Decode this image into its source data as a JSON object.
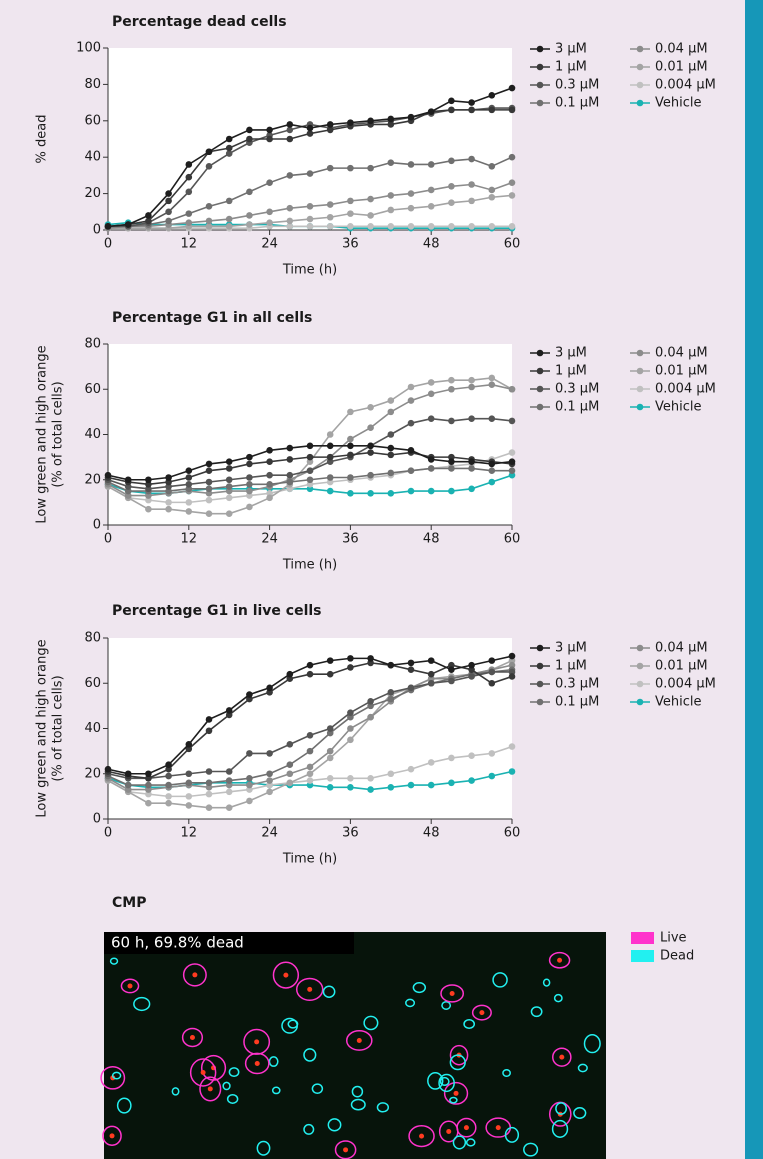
{
  "chart_data": [
    {
      "type": "line",
      "title": "Percentage dead cells",
      "xlabel": "Time (h)",
      "ylabel": [
        "% dead"
      ],
      "x": [
        0,
        3,
        6,
        9,
        12,
        15,
        18,
        21,
        24,
        27,
        30,
        33,
        36,
        39,
        42,
        45,
        48,
        51,
        54,
        57,
        60
      ],
      "xlim": [
        0,
        60
      ],
      "xticks": [
        0,
        12,
        24,
        36,
        48,
        60
      ],
      "ylim": [
        0,
        100
      ],
      "yticks": [
        0,
        20,
        40,
        60,
        80,
        100
      ],
      "series": [
        {
          "name": "3 µM",
          "color": "#1e1e1e",
          "values": [
            2,
            3,
            8,
            20,
            36,
            43,
            50,
            55,
            55,
            58,
            56,
            58,
            59,
            60,
            61,
            62,
            65,
            71,
            70,
            74,
            78
          ]
        },
        {
          "name": "1 µM",
          "color": "#383838",
          "values": [
            2,
            3,
            5,
            16,
            29,
            43,
            45,
            50,
            50,
            50,
            53,
            55,
            57,
            58,
            58,
            60,
            65,
            66,
            66,
            66,
            66
          ]
        },
        {
          "name": "0.3 µM",
          "color": "#555555",
          "values": [
            2,
            2,
            4,
            10,
            21,
            35,
            42,
            48,
            52,
            55,
            58,
            56,
            58,
            59,
            60,
            62,
            64,
            66,
            66,
            67,
            67
          ]
        },
        {
          "name": "0.1 µM",
          "color": "#707070",
          "values": [
            2,
            2,
            3,
            5,
            9,
            13,
            16,
            21,
            26,
            30,
            31,
            34,
            34,
            34,
            37,
            36,
            36,
            38,
            39,
            35,
            40
          ]
        },
        {
          "name": "0.04 µM",
          "color": "#8c8c8c",
          "values": [
            1,
            2,
            2,
            3,
            4,
            5,
            6,
            8,
            10,
            12,
            13,
            14,
            16,
            17,
            19,
            20,
            22,
            24,
            25,
            22,
            26
          ]
        },
        {
          "name": "0.01 µM",
          "color": "#a4a4a4",
          "values": [
            1,
            1,
            1,
            1,
            2,
            2,
            2,
            3,
            4,
            5,
            6,
            7,
            9,
            8,
            11,
            12,
            13,
            15,
            16,
            18,
            19
          ]
        },
        {
          "name": "0.004 µM",
          "color": "#c0c0c0",
          "values": [
            1,
            1,
            1,
            1,
            1,
            1,
            1,
            1,
            2,
            2,
            2,
            2,
            2,
            2,
            2,
            2,
            2,
            2,
            2,
            2,
            2
          ]
        },
        {
          "name": "Vehicle",
          "color": "#1ab2b2",
          "values": [
            3,
            4,
            3,
            3,
            3,
            3,
            3,
            3,
            3,
            2,
            2,
            2,
            1,
            1,
            1,
            1,
            1,
            1,
            1,
            1,
            1
          ]
        }
      ]
    },
    {
      "type": "line",
      "title": "Percentage G1 in all cells",
      "xlabel": "Time (h)",
      "ylabel": [
        "Low green and high orange",
        "(% of total cells)"
      ],
      "x": [
        0,
        3,
        6,
        9,
        12,
        15,
        18,
        21,
        24,
        27,
        30,
        33,
        36,
        39,
        42,
        45,
        48,
        51,
        54,
        57,
        60
      ],
      "xlim": [
        0,
        60
      ],
      "xticks": [
        0,
        12,
        24,
        36,
        48,
        60
      ],
      "ylim": [
        0,
        80
      ],
      "yticks": [
        0,
        20,
        40,
        60,
        80
      ],
      "series": [
        {
          "name": "3 µM",
          "color": "#1e1e1e",
          "values": [
            22,
            20,
            20,
            21,
            24,
            27,
            28,
            30,
            33,
            34,
            35,
            35,
            35,
            35,
            34,
            33,
            29,
            28,
            28,
            27,
            28
          ]
        },
        {
          "name": "1 µM",
          "color": "#383838",
          "values": [
            21,
            19,
            18,
            19,
            21,
            24,
            25,
            27,
            28,
            29,
            30,
            30,
            31,
            32,
            31,
            32,
            30,
            30,
            29,
            28,
            27
          ]
        },
        {
          "name": "0.3 µM",
          "color": "#555555",
          "values": [
            20,
            17,
            16,
            17,
            18,
            19,
            20,
            21,
            22,
            22,
            24,
            28,
            30,
            35,
            40,
            45,
            47,
            46,
            47,
            47,
            46
          ]
        },
        {
          "name": "0.1 µM",
          "color": "#707070",
          "values": [
            19,
            15,
            15,
            15,
            16,
            16,
            17,
            18,
            18,
            19,
            20,
            21,
            21,
            22,
            23,
            24,
            25,
            25,
            25,
            24,
            24
          ]
        },
        {
          "name": "0.04 µM",
          "color": "#8c8c8c",
          "values": [
            18,
            13,
            13,
            14,
            15,
            14,
            15,
            15,
            17,
            20,
            24,
            30,
            38,
            43,
            50,
            55,
            58,
            60,
            61,
            62,
            60
          ]
        },
        {
          "name": "0.01 µM",
          "color": "#a4a4a4",
          "values": [
            17,
            12,
            7,
            7,
            6,
            5,
            5,
            8,
            12,
            18,
            28,
            40,
            50,
            52,
            55,
            61,
            63,
            64,
            64,
            65,
            60
          ]
        },
        {
          "name": "0.004 µM",
          "color": "#c0c0c0",
          "values": [
            17,
            12,
            11,
            10,
            10,
            11,
            12,
            13,
            14,
            16,
            18,
            19,
            20,
            21,
            22,
            24,
            25,
            26,
            27,
            29,
            32
          ]
        },
        {
          "name": "Vehicle",
          "color": "#1ab2b2",
          "values": [
            18,
            15,
            14,
            14,
            15,
            16,
            16,
            16,
            16,
            16,
            16,
            15,
            14,
            14,
            14,
            15,
            15,
            15,
            16,
            19,
            22
          ]
        }
      ]
    },
    {
      "type": "line",
      "title": "Percentage G1 in live cells",
      "xlabel": "Time (h)",
      "ylabel": [
        "Low green and high orange",
        "(% of total cells)"
      ],
      "x": [
        0,
        3,
        6,
        9,
        12,
        15,
        18,
        21,
        24,
        27,
        30,
        33,
        36,
        39,
        42,
        45,
        48,
        51,
        54,
        57,
        60
      ],
      "xlim": [
        0,
        60
      ],
      "xticks": [
        0,
        12,
        24,
        36,
        48,
        60
      ],
      "ylim": [
        0,
        80
      ],
      "yticks": [
        0,
        20,
        40,
        60,
        80
      ],
      "series": [
        {
          "name": "3 µM",
          "color": "#1e1e1e",
          "values": [
            22,
            20,
            20,
            24,
            33,
            44,
            48,
            55,
            58,
            64,
            68,
            70,
            71,
            71,
            68,
            69,
            70,
            66,
            68,
            70,
            72
          ]
        },
        {
          "name": "1 µM",
          "color": "#383838",
          "values": [
            21,
            19,
            18,
            22,
            31,
            39,
            46,
            53,
            56,
            62,
            64,
            64,
            67,
            69,
            68,
            66,
            64,
            68,
            66,
            60,
            63
          ]
        },
        {
          "name": "0.3 µM",
          "color": "#555555",
          "values": [
            20,
            18,
            18,
            19,
            20,
            21,
            21,
            29,
            29,
            33,
            37,
            40,
            47,
            52,
            56,
            58,
            60,
            61,
            63,
            65,
            65
          ]
        },
        {
          "name": "0.1 µM",
          "color": "#707070",
          "values": [
            19,
            15,
            15,
            15,
            16,
            16,
            17,
            18,
            20,
            24,
            30,
            38,
            45,
            50,
            53,
            57,
            60,
            62,
            64,
            65,
            66
          ]
        },
        {
          "name": "0.04 µM",
          "color": "#8c8c8c",
          "values": [
            18,
            13,
            13,
            14,
            15,
            14,
            15,
            15,
            17,
            20,
            23,
            30,
            40,
            45,
            52,
            58,
            62,
            62,
            64,
            66,
            68
          ]
        },
        {
          "name": "0.01 µM",
          "color": "#a4a4a4",
          "values": [
            17,
            12,
            7,
            7,
            6,
            5,
            5,
            8,
            12,
            16,
            20,
            27,
            35,
            45,
            55,
            58,
            62,
            63,
            64,
            66,
            70
          ]
        },
        {
          "name": "0.004 µM",
          "color": "#c0c0c0",
          "values": [
            17,
            12,
            11,
            10,
            10,
            11,
            12,
            13,
            15,
            16,
            17,
            18,
            18,
            18,
            20,
            22,
            25,
            27,
            28,
            29,
            32
          ]
        },
        {
          "name": "Vehicle",
          "color": "#1ab2b2",
          "values": [
            18,
            15,
            14,
            14,
            15,
            16,
            16,
            16,
            15,
            15,
            15,
            14,
            14,
            13,
            14,
            15,
            15,
            16,
            17,
            19,
            21
          ]
        }
      ]
    }
  ],
  "image_panel": {
    "title": "CMP",
    "caption": "60 h, 69.8% dead",
    "legend": [
      {
        "name": "Live",
        "color": "#ff33cc"
      },
      {
        "name": "Dead",
        "color": "#22f0f0"
      }
    ]
  }
}
